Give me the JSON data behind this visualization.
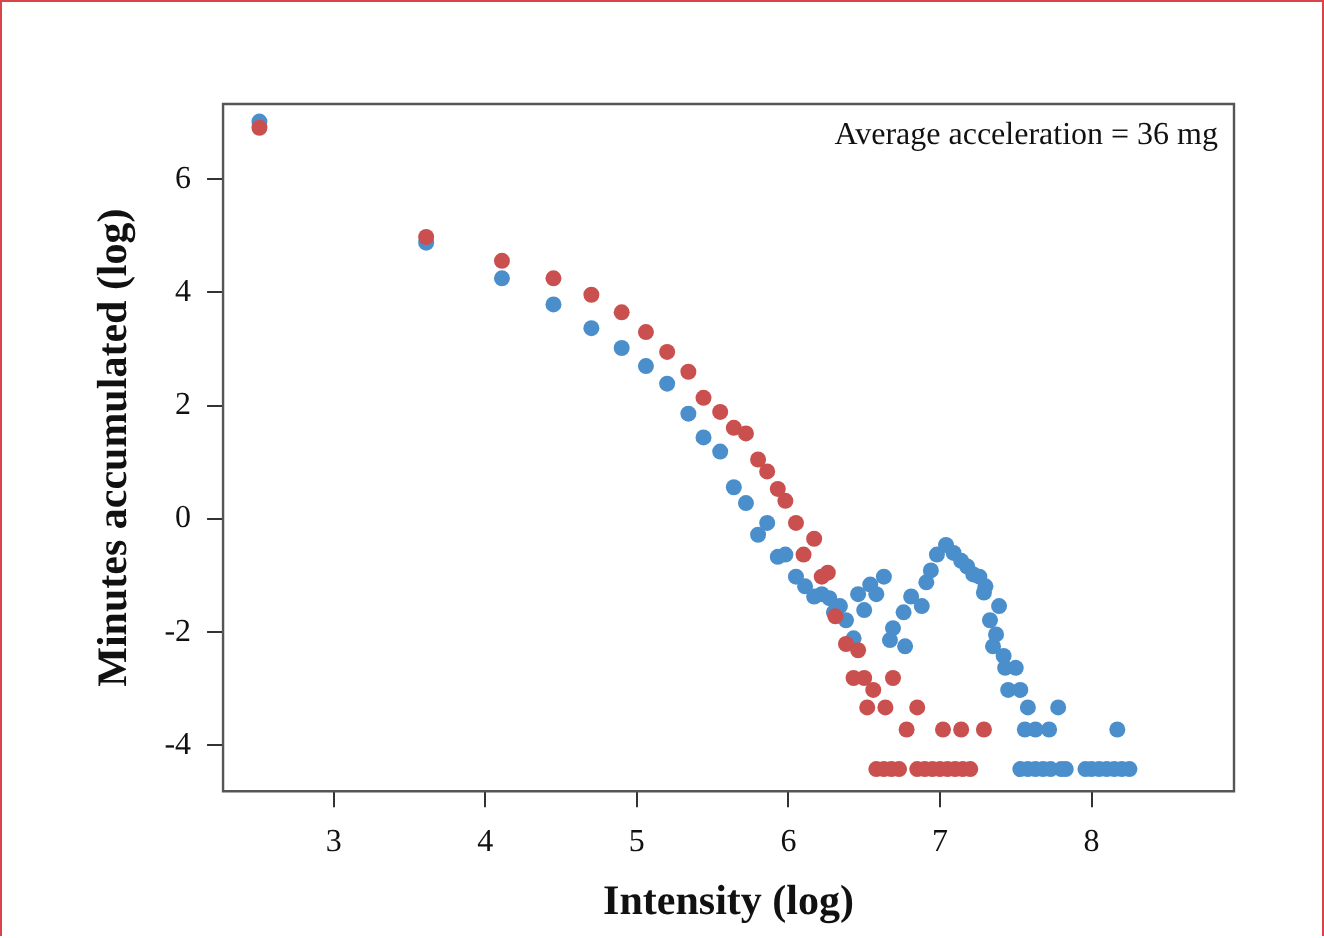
{
  "chart_data": {
    "type": "scatter",
    "xlabel": "Intensity (log)",
    "ylabel": "Minutes accumulated (log)",
    "annotations": [
      "Average acceleration = 36 mg"
    ],
    "xlim": [
      2.27,
      8.94
    ],
    "ylim": [
      -4.81,
      7.33
    ],
    "xticks": [
      3,
      4,
      5,
      6,
      7,
      8
    ],
    "yticks": [
      -4,
      -2,
      0,
      2,
      4,
      6
    ],
    "grid": false,
    "legend": false,
    "marker": "circle",
    "series": [
      {
        "color": "#c9504f",
        "x": [
          2.51,
          3.61,
          4.11,
          4.45,
          4.7,
          4.9,
          5.06,
          5.2,
          5.34,
          5.44,
          5.55,
          5.64,
          5.72,
          5.8,
          5.86,
          5.93,
          5.98,
          6.05,
          6.1,
          6.17,
          6.22,
          6.26,
          6.31,
          6.38,
          6.46,
          6.43,
          6.5,
          6.69,
          6.56,
          6.52,
          6.64,
          6.85,
          6.78,
          7.02,
          7.14,
          7.29,
          6.58,
          6.63,
          6.68,
          6.73,
          6.85,
          6.9,
          6.95,
          7.0,
          7.05,
          7.1,
          7.15,
          7.2
        ],
        "values": [
          6.91,
          4.98,
          4.56,
          4.25,
          3.96,
          3.65,
          3.3,
          2.95,
          2.6,
          2.14,
          1.89,
          1.61,
          1.51,
          1.05,
          0.84,
          0.53,
          0.32,
          -0.07,
          -0.63,
          -0.35,
          -1.02,
          -0.95,
          -1.72,
          -2.21,
          -2.32,
          -2.81,
          -2.81,
          -2.81,
          -3.02,
          -3.33,
          -3.33,
          -3.33,
          -3.72,
          -3.72,
          -3.72,
          -3.72,
          -4.42,
          -4.42,
          -4.42,
          -4.42,
          -4.42,
          -4.42,
          -4.42,
          -4.42,
          -4.42,
          -4.42,
          -4.42,
          -4.42
        ]
      },
      {
        "color": "#4a8fcc",
        "x": [
          2.51,
          3.61,
          4.11,
          4.45,
          4.7,
          4.9,
          5.06,
          5.2,
          5.34,
          5.44,
          5.55,
          5.64,
          5.72,
          5.8,
          5.86,
          5.93,
          5.98,
          6.05,
          6.11,
          6.17,
          6.22,
          6.27,
          6.3,
          6.34,
          6.38,
          6.43,
          6.46,
          6.5,
          6.54,
          6.58,
          6.63,
          6.67,
          6.69,
          6.77,
          6.76,
          6.81,
          6.88,
          6.91,
          6.94,
          6.98,
          7.04,
          7.09,
          7.14,
          7.18,
          7.22,
          7.26,
          7.3,
          7.29,
          7.39,
          7.33,
          7.37,
          7.35,
          7.42,
          7.43,
          7.5,
          7.45,
          7.53,
          7.58,
          7.78,
          7.56,
          7.63,
          7.72,
          8.17,
          7.53,
          7.58,
          7.63,
          7.68,
          7.73,
          7.8,
          7.83,
          7.96,
          8.0,
          8.05,
          8.1,
          8.15,
          8.2,
          8.25
        ],
        "values": [
          7.02,
          4.88,
          4.25,
          3.79,
          3.37,
          3.02,
          2.7,
          2.39,
          1.86,
          1.44,
          1.19,
          0.56,
          0.28,
          -0.28,
          -0.07,
          -0.67,
          -0.63,
          -1.02,
          -1.19,
          -1.37,
          -1.33,
          -1.4,
          -1.65,
          -1.54,
          -1.79,
          -2.11,
          -1.33,
          -1.61,
          -1.16,
          -1.33,
          -1.02,
          -2.14,
          -1.93,
          -2.25,
          -1.65,
          -1.37,
          -1.54,
          -1.12,
          -0.91,
          -0.63,
          -0.46,
          -0.6,
          -0.74,
          -0.84,
          -0.98,
          -1.02,
          -1.19,
          -1.3,
          -1.54,
          -1.79,
          -2.04,
          -2.25,
          -2.42,
          -2.63,
          -2.63,
          -3.02,
          -3.02,
          -3.33,
          -3.33,
          -3.72,
          -3.72,
          -3.72,
          -3.72,
          -4.42,
          -4.42,
          -4.42,
          -4.42,
          -4.42,
          -4.42,
          -4.42,
          -4.42,
          -4.42,
          -4.42,
          -4.42,
          -4.42,
          -4.42,
          -4.42
        ]
      }
    ]
  }
}
